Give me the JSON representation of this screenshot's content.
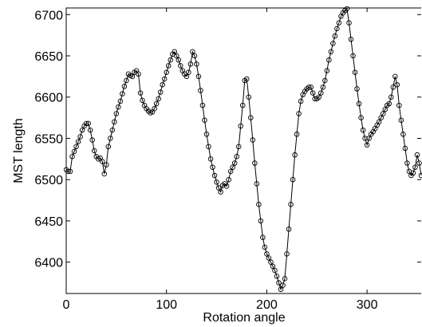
{
  "chart_data": {
    "type": "line",
    "x_label": "Rotation angle",
    "y_label": "MST length",
    "xlim": [
      0,
      354
    ],
    "ylim": [
      6362,
      6708
    ],
    "xticks": [
      0,
      100,
      200,
      300
    ],
    "yticks": [
      6400,
      6450,
      6500,
      6550,
      6600,
      6650,
      6700
    ],
    "x": [
      0,
      2,
      4,
      6,
      8,
      10,
      12,
      14,
      16,
      18,
      20,
      22,
      24,
      26,
      28,
      30,
      32,
      34,
      36,
      38,
      40,
      42,
      44,
      46,
      48,
      50,
      52,
      54,
      56,
      58,
      60,
      62,
      64,
      66,
      68,
      70,
      72,
      74,
      76,
      78,
      80,
      82,
      84,
      86,
      88,
      90,
      92,
      94,
      96,
      98,
      100,
      102,
      104,
      106,
      108,
      110,
      112,
      114,
      116,
      118,
      120,
      122,
      124,
      126,
      128,
      130,
      132,
      134,
      136,
      138,
      140,
      142,
      144,
      146,
      148,
      150,
      152,
      154,
      156,
      158,
      160,
      162,
      164,
      166,
      168,
      170,
      172,
      174,
      176,
      178,
      180,
      182,
      184,
      186,
      188,
      190,
      192,
      194,
      196,
      198,
      200,
      202,
      204,
      206,
      208,
      210,
      212,
      214,
      216,
      218,
      220,
      222,
      224,
      226,
      228,
      230,
      232,
      234,
      236,
      238,
      240,
      242,
      244,
      246,
      248,
      250,
      252,
      254,
      256,
      258,
      260,
      262,
      264,
      266,
      268,
      270,
      272,
      274,
      276,
      278,
      280,
      282,
      284,
      286,
      288,
      290,
      292,
      294,
      296,
      298,
      300,
      302,
      304,
      306,
      308,
      310,
      312,
      314,
      316,
      318,
      320,
      322,
      324,
      326,
      328,
      330,
      332,
      334,
      336,
      338,
      340,
      342,
      344,
      346,
      348,
      350,
      352,
      354
    ],
    "series": [
      {
        "color": "#000000",
        "values": [
          6512,
          6510,
          6510,
          6528,
          6534,
          6540,
          6546,
          6552,
          6560,
          6565,
          6568,
          6568,
          6560,
          6548,
          6535,
          6528,
          6525,
          6526,
          6522,
          6507,
          6518,
          6540,
          6550,
          6560,
          6570,
          6580,
          6588,
          6595,
          6604,
          6613,
          6620,
          6628,
          6626,
          6625,
          6630,
          6632,
          6628,
          6605,
          6596,
          6590,
          6586,
          6583,
          6581,
          6582,
          6586,
          6592,
          6598,
          6606,
          6615,
          6622,
          6630,
          6638,
          6645,
          6652,
          6655,
          6650,
          6645,
          6638,
          6632,
          6628,
          6625,
          6630,
          6640,
          6655,
          6650,
          6640,
          6625,
          6608,
          6590,
          6572,
          6555,
          6540,
          6525,
          6515,
          6505,
          6497,
          6490,
          6485,
          6493,
          6495,
          6492,
          6500,
          6510,
          6515,
          6520,
          6528,
          6540,
          6565,
          6590,
          6620,
          6622,
          6600,
          6575,
          6548,
          6520,
          6495,
          6470,
          6450,
          6430,
          6418,
          6410,
          6405,
          6400,
          6395,
          6390,
          6383,
          6375,
          6367,
          6372,
          6380,
          6410,
          6440,
          6470,
          6500,
          6530,
          6555,
          6580,
          6595,
          6603,
          6607,
          6610,
          6612,
          6612,
          6605,
          6598,
          6598,
          6600,
          6605,
          6612,
          6620,
          6632,
          6645,
          6655,
          6665,
          6674,
          6683,
          6690,
          6698,
          6702,
          6705,
          6707,
          6690,
          6670,
          6650,
          6630,
          6610,
          6592,
          6575,
          6560,
          6550,
          6542,
          6550,
          6555,
          6558,
          6562,
          6566,
          6570,
          6575,
          6580,
          6585,
          6590,
          6592,
          6600,
          6612,
          6625,
          6615,
          6590,
          6572,
          6555,
          6538,
          6520,
          6510,
          6505,
          6508,
          6515,
          6530,
          6520,
          6505
        ]
      }
    ]
  }
}
